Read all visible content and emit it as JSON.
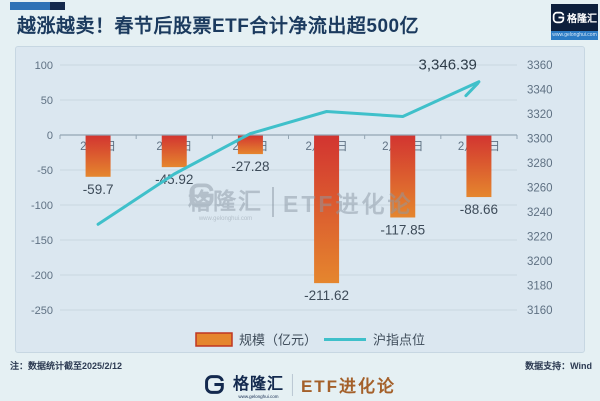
{
  "page": {
    "title": "越涨越卖！春节后股票ETF合计净流出超500亿",
    "note_left": "注：数据统计截至2025/2/12",
    "note_right": "数据支持：Wind"
  },
  "brand": {
    "name": "格隆汇",
    "url": "www.gelonghui.com",
    "series_name": "ETF进化论"
  },
  "colors": {
    "bar_top": "#d23430",
    "bar_bottom": "#e5862e",
    "bar_swatch_border": "#bf3722",
    "line": "#3fc0ca",
    "title_navy": "#1b3a5e",
    "brand_navy": "#13294e",
    "etf_orange": "#a4602a"
  },
  "chart_data": {
    "type": "bar+line combo",
    "categories": [
      "2月5日",
      "2月6日",
      "2月7日",
      "2月10日",
      "2月11日",
      "2月12日"
    ],
    "series": [
      {
        "name": "规模（亿元）",
        "type": "bar",
        "axis": "left",
        "values": [
          -59.7,
          -45.92,
          -27.28,
          -211.62,
          -117.85,
          -88.66
        ]
      },
      {
        "name": "沪指点位",
        "type": "line",
        "axis": "right",
        "values": [
          3230,
          3271,
          3304,
          3322,
          3318,
          3346.39
        ],
        "last_label": "3,346.39"
      }
    ],
    "bar_labels": [
      "-59.7",
      "-45.92",
      "-27.28",
      "-211.62",
      "-117.85",
      "-88.66"
    ],
    "left_axis": {
      "ticks": [
        100,
        50,
        0,
        -50,
        -100,
        -150,
        -200,
        -250
      ],
      "min": -250,
      "max": 100
    },
    "right_axis": {
      "ticks": [
        3360,
        3340,
        3320,
        3300,
        3280,
        3260,
        3240,
        3220,
        3200,
        3180,
        3160
      ],
      "min": 3160,
      "max": 3360
    },
    "grid": true,
    "legend_position": "bottom"
  }
}
